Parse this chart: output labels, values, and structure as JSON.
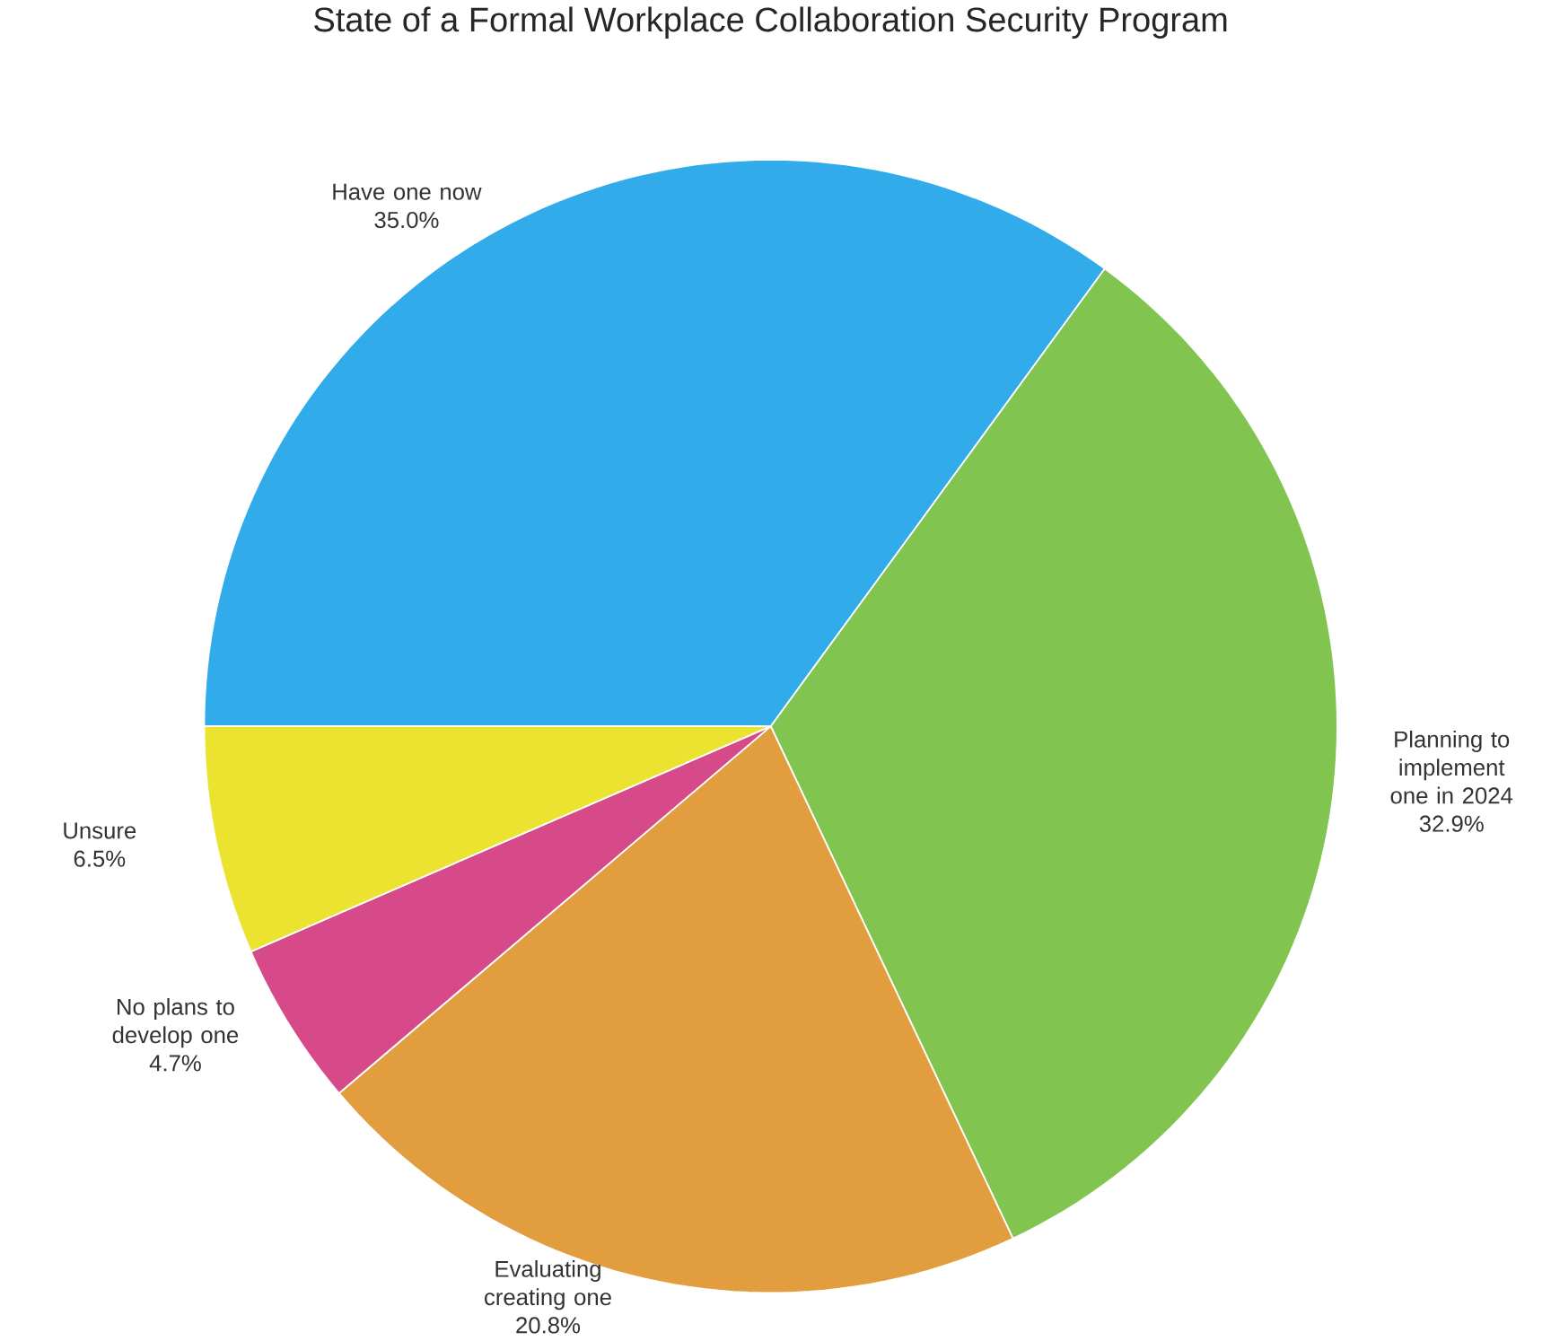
{
  "chart_data": {
    "type": "pie",
    "title": "State of a Formal Workplace Collaboration Security Program",
    "categories": [
      "Have one now",
      "Planning to implement one in 2024",
      "Evaluating creating one",
      "No plans to develop one",
      "Unsure"
    ],
    "values": [
      35.0,
      32.9,
      20.8,
      4.7,
      6.5
    ],
    "colors": [
      "#31abea",
      "#82c450",
      "#e29e3e",
      "#d64a8a",
      "#ebe32f"
    ],
    "value_labels": [
      "35.0%",
      "32.9%",
      "20.8%",
      "4.7%",
      "6.5%"
    ]
  }
}
